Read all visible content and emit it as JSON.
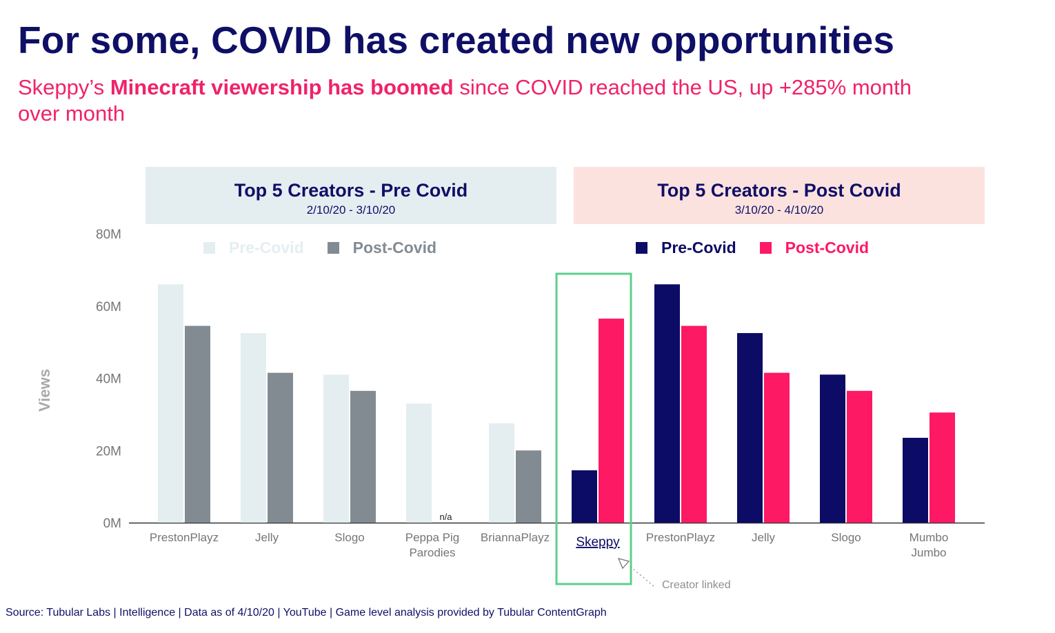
{
  "header": {
    "title": "For some, COVID has created new opportunities",
    "subtitle_pre": "Skeppy’s ",
    "subtitle_bold": "Minecraft viewership has boomed",
    "subtitle_post": " since COVID reached the US, up +285% month over month"
  },
  "panels": {
    "pre": {
      "title": "Top 5 Creators - Pre Covid",
      "range": "2/10/20 - 3/10/20"
    },
    "post": {
      "title": "Top 5 Creators - Post Covid",
      "range": "3/10/20 - 4/10/20"
    }
  },
  "colors": {
    "pre_muted": "#e4eef1",
    "post_muted": "#838b92",
    "pre": "#0c0b65",
    "post": "#fd1964",
    "highlight": "#5ccf8b",
    "axis_text": "#757575"
  },
  "annotation": {
    "text": "Creator linked",
    "na_label": "n/a"
  },
  "footer": {
    "source": "Source: Tubular Labs | Intelligence | Data as of 4/10/20 | YouTube | Game level analysis provided by Tubular ContentGraph"
  },
  "chart_data": {
    "type": "bar",
    "ylabel": "Views",
    "ylim": [
      0,
      80
    ],
    "yticks": [
      "0M",
      "20M",
      "40M",
      "60M",
      "80M"
    ],
    "groups": [
      {
        "name": "pre",
        "legend": [
          {
            "label": "Pre-Covid",
            "color": "#e4eef1"
          },
          {
            "label": "Post-Covid",
            "color": "#838b92"
          }
        ],
        "categories": [
          [
            "PrestonPlayz"
          ],
          [
            "Jelly"
          ],
          [
            "Slogo"
          ],
          [
            "Peppa Pig",
            "Parodies"
          ],
          [
            "BriannaPlayz"
          ]
        ],
        "series": [
          {
            "name": "Pre-Covid",
            "values": [
              66,
              52.5,
              41,
              33,
              27.5
            ]
          },
          {
            "name": "Post-Covid",
            "values": [
              54.5,
              41.5,
              36.5,
              null,
              20
            ]
          }
        ]
      },
      {
        "name": "post",
        "legend": [
          {
            "label": "Pre-Covid",
            "color": "#0c0b65"
          },
          {
            "label": "Post-Covid",
            "color": "#fd1964"
          }
        ],
        "categories": [
          [
            "Skeppy"
          ],
          [
            "PrestonPlayz"
          ],
          [
            "Jelly"
          ],
          [
            "Slogo"
          ],
          [
            "Mumbo",
            "Jumbo"
          ]
        ],
        "series": [
          {
            "name": "Pre-Covid",
            "values": [
              14.5,
              66,
              52.5,
              41,
              23.5
            ]
          },
          {
            "name": "Post-Covid",
            "values": [
              56.5,
              54.5,
              41.5,
              36.5,
              30.5
            ]
          }
        ]
      }
    ],
    "highlight_category": "Skeppy"
  }
}
